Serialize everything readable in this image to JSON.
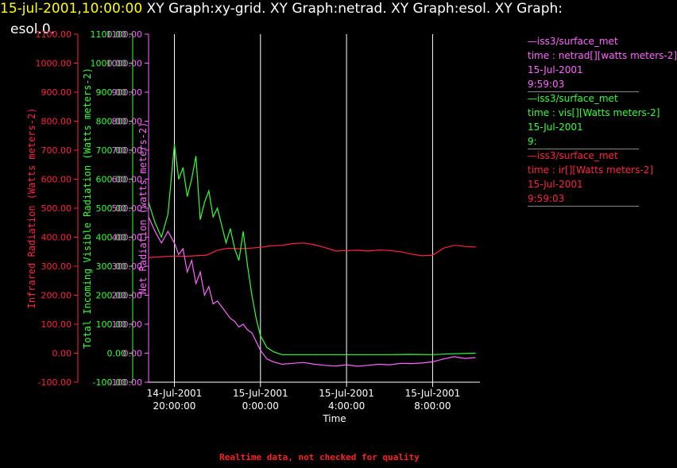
{
  "header": {
    "timestamp": "15-jul-2001,10:00:00",
    "title_rest": " XY Graph:xy-grid.  XY Graph:netrad.  XY Graph:esol.  XY Graph:",
    "title_line2": "esol.0."
  },
  "legend": [
    {
      "color": "#ff66ff",
      "lines": [
        "—iss3/surface_met",
        "time : netrad[][watts meters-2]",
        "15-Jul-2001",
        "9:59:03"
      ]
    },
    {
      "color": "#33ff33",
      "lines": [
        "—iss3/surface_met",
        "time : vis[][Watts meters-2]",
        "15-Jul-2001",
        "9:"
      ]
    },
    {
      "color": "#ff2244",
      "lines": [
        "—iss3/surface_met",
        "time : ir[][Watts meters-2]",
        "15-Jul-2001",
        "9:59:03"
      ]
    }
  ],
  "footer": "Realtime data, not checked for quality",
  "chart_data": {
    "type": "line",
    "xlabel": "Time",
    "x_ticks": [
      {
        "hour": 0,
        "line1": "14-Jul-2001",
        "line2": "20:00:00"
      },
      {
        "hour": 4,
        "line1": "15-Jul-2001",
        "line2": "0:00:00"
      },
      {
        "hour": 8,
        "line1": "15-Jul-2001",
        "line2": "4:00:00"
      },
      {
        "hour": 12,
        "line1": "15-Jul-2001",
        "line2": "8:00:00"
      }
    ],
    "xlim_hours": [
      -1.2,
      14.2
    ],
    "ylim": [
      -100,
      1100
    ],
    "y_ticks": [
      -100,
      0,
      100,
      200,
      300,
      400,
      500,
      600,
      700,
      800,
      900,
      1000,
      1100
    ],
    "y_tick_labels": [
      "-100.00",
      "0.00",
      "100.00",
      "200.00",
      "300.00",
      "400.00",
      "500.00",
      "600.00",
      "700.00",
      "800.00",
      "900.00",
      "1000.00",
      "1100.00"
    ],
    "axes": [
      {
        "label": "Infrared Radiation (Watts meters-2)",
        "color": "#ff2244"
      },
      {
        "label": "Total Incoming Visible Radiation (Watts meters-2)",
        "color": "#33ff33"
      },
      {
        "label": "Net Radiation (watts meters-2)",
        "color": "#ff66ff"
      }
    ],
    "series": [
      {
        "color": "#ff2244",
        "x": [
          -1.2,
          -0.5,
          0,
          0.5,
          1,
          1.5,
          2,
          2.5,
          3,
          3.5,
          4,
          4.5,
          5,
          5.5,
          6,
          6.5,
          7,
          7.5,
          8,
          8.5,
          9,
          9.5,
          10,
          10.5,
          11,
          11.5,
          12,
          12.5,
          13,
          13.5,
          14
        ],
        "y": [
          330,
          333,
          335,
          334,
          336,
          338,
          355,
          362,
          360,
          362,
          365,
          370,
          372,
          378,
          380,
          374,
          364,
          352,
          354,
          355,
          352,
          356,
          354,
          350,
          342,
          336,
          338,
          362,
          372,
          368,
          366
        ]
      },
      {
        "color": "#33ff33",
        "x": [
          -1.2,
          -0.9,
          -0.6,
          -0.3,
          0,
          0.2,
          0.4,
          0.6,
          0.8,
          1,
          1.2,
          1.4,
          1.6,
          1.8,
          2,
          2.2,
          2.4,
          2.6,
          2.8,
          3,
          3.2,
          3.4,
          3.6,
          3.8,
          4,
          4.3,
          4.6,
          5,
          6,
          7,
          8,
          9,
          10,
          11,
          12,
          13,
          14
        ],
        "y": [
          520,
          450,
          400,
          480,
          720,
          600,
          640,
          540,
          600,
          680,
          460,
          520,
          560,
          470,
          500,
          440,
          380,
          430,
          360,
          320,
          420,
          300,
          200,
          120,
          60,
          20,
          5,
          -5,
          -5,
          -5,
          -5,
          -5,
          -5,
          -4,
          -5,
          -2,
          0
        ]
      },
      {
        "color": "#ff66ff",
        "x": [
          -1.2,
          -0.9,
          -0.6,
          -0.3,
          0,
          0.2,
          0.4,
          0.6,
          0.8,
          1,
          1.2,
          1.4,
          1.6,
          1.8,
          2,
          2.2,
          2.4,
          2.6,
          2.8,
          3,
          3.2,
          3.4,
          3.6,
          3.8,
          4,
          4.3,
          4.6,
          5,
          5.5,
          6,
          6.5,
          7,
          7.5,
          8,
          8.5,
          9,
          9.5,
          10,
          10.5,
          11,
          11.5,
          12,
          12.5,
          13,
          13.5,
          14
        ],
        "y": [
          470,
          420,
          380,
          420,
          380,
          340,
          360,
          280,
          320,
          240,
          280,
          200,
          230,
          170,
          180,
          160,
          140,
          120,
          110,
          90,
          100,
          80,
          70,
          40,
          10,
          -20,
          -30,
          -38,
          -35,
          -32,
          -38,
          -42,
          -44,
          -40,
          -45,
          -42,
          -38,
          -40,
          -35,
          -36,
          -34,
          -30,
          -20,
          -12,
          -18,
          -15
        ]
      }
    ]
  }
}
